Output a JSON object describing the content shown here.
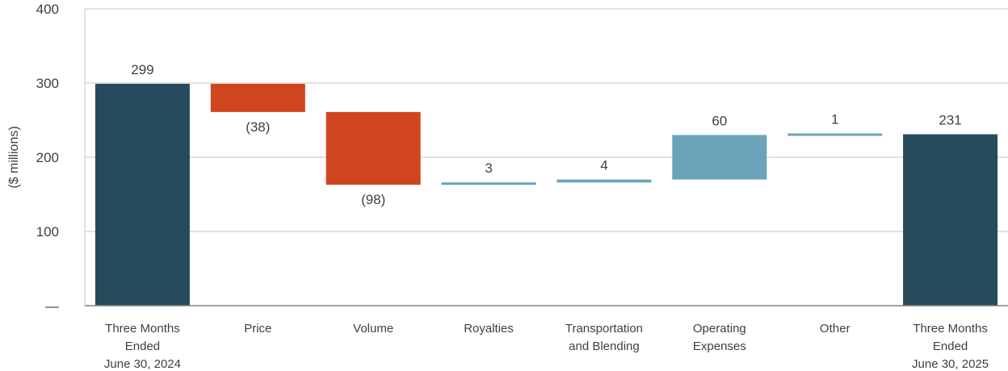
{
  "chart_data": {
    "type": "waterfall",
    "ylabel": "($ millions)",
    "ylim": [
      0,
      400
    ],
    "yticks": [
      {
        "value": 0,
        "label": "—"
      },
      {
        "value": 100,
        "label": "100"
      },
      {
        "value": 200,
        "label": "200"
      },
      {
        "value": 300,
        "label": "300"
      },
      {
        "value": 400,
        "label": "400"
      }
    ],
    "grid": true,
    "colors": {
      "total": "#264b5c",
      "decrease": "#cf4520",
      "increase": "#6ba3ba",
      "grid": "#d9d9d9",
      "axis": "#808080",
      "text": "#404040"
    },
    "bars": [
      {
        "key": "start",
        "category": [
          "Three Months",
          "Ended",
          "June 30, 2024"
        ],
        "kind": "total",
        "start": 0,
        "end": 299,
        "label": "299",
        "label_pos": "above"
      },
      {
        "key": "price",
        "category": [
          "Price"
        ],
        "kind": "decrease",
        "start": 299,
        "end": 261,
        "label": "(38)",
        "label_pos": "below"
      },
      {
        "key": "volume",
        "category": [
          "Volume"
        ],
        "kind": "decrease",
        "start": 261,
        "end": 163,
        "label": "(98)",
        "label_pos": "below"
      },
      {
        "key": "royalties",
        "category": [
          "Royalties"
        ],
        "kind": "increase",
        "start": 163,
        "end": 166,
        "label": "3",
        "label_pos": "above"
      },
      {
        "key": "transport",
        "category": [
          "Transportation",
          "and Blending"
        ],
        "kind": "increase",
        "start": 166,
        "end": 170,
        "label": "4",
        "label_pos": "above"
      },
      {
        "key": "opex",
        "category": [
          "Operating",
          "Expenses"
        ],
        "kind": "increase",
        "start": 170,
        "end": 230,
        "label": "60",
        "label_pos": "above"
      },
      {
        "key": "other",
        "category": [
          "Other"
        ],
        "kind": "increase",
        "start": 230,
        "end": 231,
        "label": "1",
        "label_pos": "above"
      },
      {
        "key": "end",
        "category": [
          "Three Months",
          "Ended",
          "June 30, 2025"
        ],
        "kind": "total",
        "start": 0,
        "end": 231,
        "label": "231",
        "label_pos": "above"
      }
    ]
  }
}
